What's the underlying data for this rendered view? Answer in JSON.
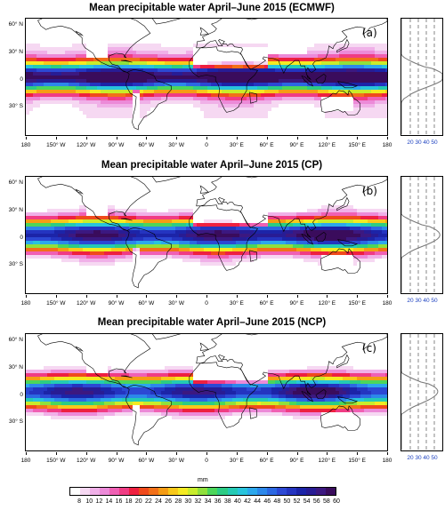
{
  "panels": [
    {
      "title": "Mean precipitable water April–June 2015 (ECMWF)",
      "label": "(a)",
      "variant": 0
    },
    {
      "title": "Mean precipitable water April–June 2015 (CP)",
      "label": "(b)",
      "variant": 1
    },
    {
      "title": "Mean precipitable water April–June 2015 (NCP)",
      "label": "(c)",
      "variant": 2
    }
  ],
  "lat_labels": [
    "60° N",
    "30° N",
    "0",
    "30° S"
  ],
  "lon_labels": [
    "180",
    "150° W",
    "120° W",
    "90° W",
    "60° W",
    "30° W",
    "0",
    "30° E",
    "60° E",
    "90° E",
    "120° E",
    "150° E",
    "180"
  ],
  "side_labels": [
    "20",
    "30",
    "40",
    "50"
  ],
  "units": "mm",
  "colorbar": {
    "labels": [
      "8",
      "10",
      "12",
      "14",
      "16",
      "18",
      "20",
      "22",
      "24",
      "26",
      "28",
      "30",
      "32",
      "34",
      "36",
      "38",
      "40",
      "42",
      "44",
      "46",
      "48",
      "50",
      "52",
      "54",
      "56",
      "58",
      "60"
    ],
    "colors": [
      "#ffffff",
      "#f6d8f2",
      "#f0b0e8",
      "#ec8ad8",
      "#f060b4",
      "#f03c84",
      "#ee2040",
      "#f04a1c",
      "#f27018",
      "#f59c14",
      "#f8c81a",
      "#f4ea22",
      "#c8ec2c",
      "#90e03c",
      "#4cd65a",
      "#2ccc84",
      "#24cab4",
      "#28c4dc",
      "#2ca8ec",
      "#2c88ea",
      "#2c68e2",
      "#2c48d4",
      "#2434c0",
      "#1c24a8",
      "#281c94",
      "#3c1880",
      "#3a0c5c"
    ]
  }
}
